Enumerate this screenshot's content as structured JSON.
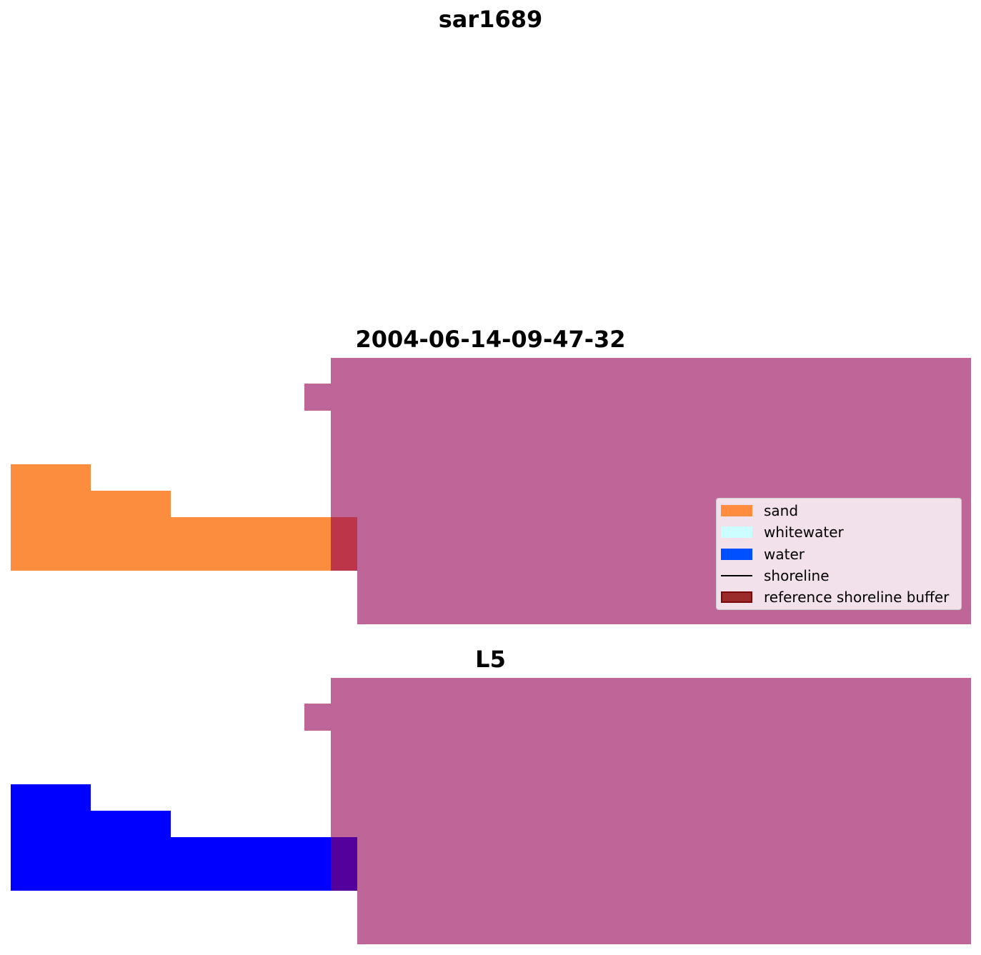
{
  "titles": {
    "top": "sar1689",
    "middle": "2004-06-14-09-47-32",
    "bottom": "L5"
  },
  "colors": {
    "sand": "#fc8d3e",
    "water_pixels": "#0000ff",
    "buffer_overlay": "#be6697",
    "buffer_over_sand": "#bd3549",
    "buffer_over_water": "#54009d"
  },
  "legend": {
    "items": [
      {
        "label": "sand",
        "color": "#ff8c3f"
      },
      {
        "label": "whitewater",
        "color": "#ccfeff"
      },
      {
        "label": "water",
        "color": "#0050ff"
      },
      {
        "label": "shoreline",
        "color": "#000000"
      },
      {
        "label": "reference shoreline buffer",
        "color": "#9b2b2b"
      }
    ]
  }
}
